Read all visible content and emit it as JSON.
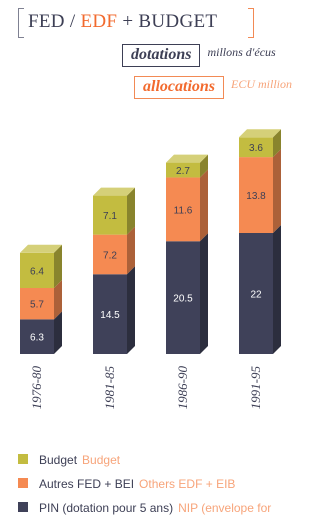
{
  "title": {
    "part1": "FED /",
    "part2": "EDF",
    "part3": "+ BUDGET"
  },
  "subtitle_fr": {
    "label": "dotations",
    "note": "millons d'écus"
  },
  "subtitle_en": {
    "label": "allocations",
    "note": "ECU million"
  },
  "colors": {
    "budget": "#c3bc40",
    "others": "#f58a52",
    "pin": "#3f4159",
    "english_text": "#f7a47a"
  },
  "legend": [
    {
      "fr": "Budget",
      "en": "Budget",
      "color": "#c3bc40"
    },
    {
      "fr": "Autres FED + BEI",
      "en": "Others EDF + EIB",
      "color": "#f58a52"
    },
    {
      "fr": "PIN (dotation pour 5 ans)",
      "en": "NIP (envelope for",
      "color": "#3f4159"
    }
  ],
  "chart_data": {
    "type": "bar",
    "stacked": true,
    "categories": [
      "1976-80",
      "1981-85",
      "1986-90",
      "1991-95"
    ],
    "series": [
      {
        "name": "PIN (dotation pour 5 ans)",
        "values": [
          6.3,
          14.5,
          20.5,
          22
        ]
      },
      {
        "name": "Autres FED + BEI",
        "values": [
          5.7,
          7.2,
          11.6,
          13.8
        ]
      },
      {
        "name": "Budget",
        "values": [
          6.4,
          7.1,
          2.7,
          3.6
        ]
      }
    ],
    "value_labels": [
      [
        "6.3",
        "14.5",
        "20.5",
        "22"
      ],
      [
        "5.7",
        "7.2",
        "11.6",
        "13.8"
      ],
      [
        "6.4",
        "7.1",
        "2.7",
        "3.6"
      ]
    ],
    "ylim": [
      0,
      40
    ],
    "grid": false,
    "legend_position": "bottom"
  }
}
